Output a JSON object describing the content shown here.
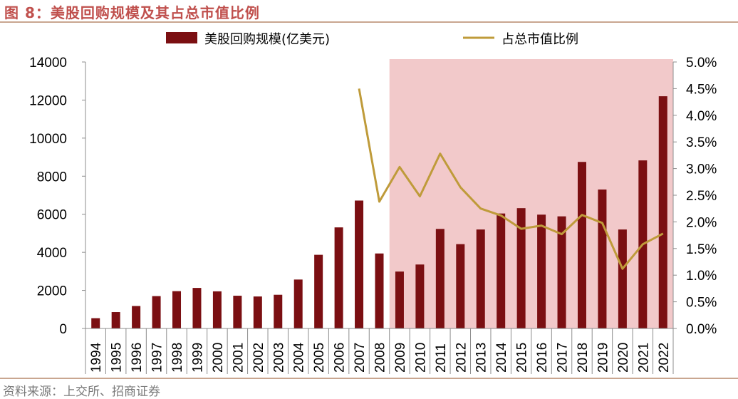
{
  "figure_title": "图 8：美股回购规模及其占总市值比例",
  "source_note": "资料来源：上交所、招商证券",
  "colors": {
    "bar": "#7b0f12",
    "line": "#bf9b3a",
    "shade": "#f2c9ca",
    "title": "#c0504d"
  },
  "chart_data": {
    "type": "bar",
    "categories": [
      "1994",
      "1995",
      "1996",
      "1997",
      "1998",
      "1999",
      "2000",
      "2001",
      "2002",
      "2003",
      "2004",
      "2005",
      "2006",
      "2007",
      "2008",
      "2009",
      "2010",
      "2011",
      "2012",
      "2013",
      "2014",
      "2015",
      "2016",
      "2017",
      "2018",
      "2019",
      "2020",
      "2021",
      "2022"
    ],
    "series": [
      {
        "name": "美股回购规模(亿美元)",
        "type": "bar",
        "axis": "left",
        "values": [
          540,
          860,
          1180,
          1700,
          1960,
          2130,
          1950,
          1720,
          1680,
          1770,
          2570,
          3870,
          5310,
          6720,
          3940,
          2990,
          3360,
          5230,
          4430,
          5200,
          6040,
          6320,
          5980,
          5890,
          8750,
          7300,
          5200,
          8830,
          12200
        ]
      },
      {
        "name": "占总市值比例",
        "type": "line",
        "axis": "right",
        "values": [
          null,
          null,
          null,
          null,
          null,
          null,
          null,
          null,
          null,
          null,
          null,
          null,
          null,
          4.5,
          2.38,
          3.03,
          2.48,
          3.28,
          2.65,
          2.25,
          2.12,
          1.87,
          1.93,
          1.77,
          2.13,
          1.98,
          1.12,
          1.58,
          1.78
        ]
      }
    ],
    "y_left": {
      "min": 0,
      "max": 14000,
      "ticks": [
        "0",
        "2000",
        "4000",
        "6000",
        "8000",
        "10000",
        "12000",
        "14000"
      ]
    },
    "y_right": {
      "min": 0,
      "max": 5.0,
      "ticks": [
        "0.0%",
        "0.5%",
        "1.0%",
        "1.5%",
        "2.0%",
        "2.5%",
        "3.0%",
        "3.5%",
        "4.0%",
        "4.5%",
        "5.0%"
      ]
    },
    "shaded_range": [
      "2009",
      "2022"
    ],
    "legend_position": "top"
  }
}
